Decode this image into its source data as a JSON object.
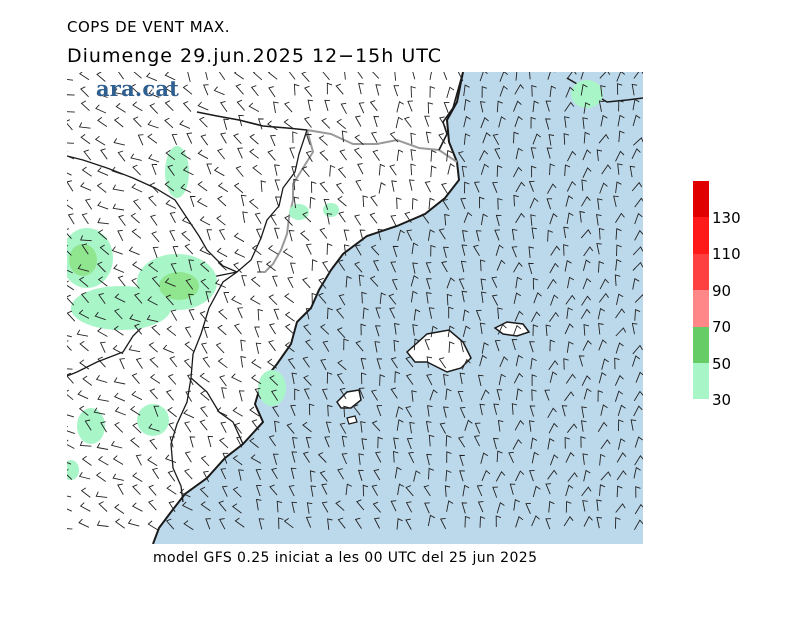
{
  "header": {
    "title": "COPS DE VENT MAX.",
    "subtitle": "Diumenge  29.jun.2025  12−15h  UTC"
  },
  "logo": {
    "text": "ara.cat"
  },
  "footer": {
    "text": "model GFS 0.25 iniciat a les 00 UTC del 25 jun 2025"
  },
  "colors": {
    "sea": "#bcd9ec",
    "land": "#ffffff",
    "coast": "#1a1a1a",
    "border": "#8f8f8f",
    "barb": "#222222",
    "logo": "#2f5f8f"
  },
  "legend": {
    "bins": [
      {
        "label": "30",
        "color": "#a8f5c8"
      },
      {
        "label": "50",
        "color": "#8fe68f"
      },
      {
        "label": "70",
        "color": "#66cc66"
      },
      {
        "label": "90",
        "color": "#ff7a7a"
      },
      {
        "label": "110",
        "color": "#ff4040"
      },
      {
        "label": "130",
        "color": "#ff1a1a"
      },
      {
        "label": "",
        "color": "#e00000"
      }
    ]
  }
}
